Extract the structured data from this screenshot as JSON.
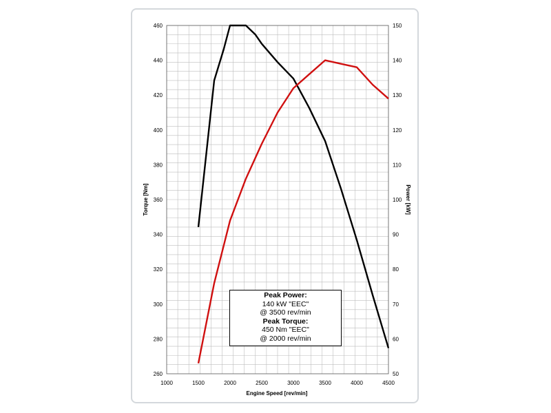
{
  "chart_data": {
    "type": "line",
    "xlabel": "Engine Speed [rev/min]",
    "ylabel_left": "Torque [Nm]",
    "ylabel_right": "Power [kW]",
    "xlim": [
      1000,
      4500
    ],
    "ylim_left": [
      260,
      450
    ],
    "ylim_right": [
      50,
      150
    ],
    "x_ticks": [
      1000,
      1500,
      2000,
      2500,
      3000,
      3500,
      4000,
      4500
    ],
    "y_left_ticks": [
      260,
      280,
      300,
      320,
      340,
      360,
      380,
      400,
      420,
      440,
      460
    ],
    "y_right_ticks": [
      50,
      60,
      70,
      80,
      90,
      100,
      110,
      120,
      130,
      140,
      150
    ],
    "grid": true,
    "series": [
      {
        "axis": "left",
        "color": "#000000",
        "x": [
          1500,
          1600,
          1750,
          1900,
          2000,
          2100,
          2250,
          2400,
          2500,
          2750,
          3000,
          3250,
          3500,
          3750,
          4000,
          4250,
          4500
        ],
        "y": [
          340,
          372,
          420,
          437,
          450,
          450,
          450,
          445,
          440,
          430,
          421,
          405,
          387,
          361,
          333,
          303,
          274
        ]
      },
      {
        "axis": "right",
        "color": "#d01010",
        "x": [
          1500,
          1750,
          2000,
          2250,
          2500,
          2750,
          3000,
          3250,
          3500,
          3750,
          4000,
          4250,
          4500
        ],
        "y": [
          53,
          76,
          94,
          106,
          116,
          125,
          132,
          136,
          140,
          139,
          138,
          133,
          129
        ]
      }
    ],
    "annotation": {
      "lines": [
        "Peak Power:",
        "140 kW \"EEC\"",
        "@  3500 rev/min",
        "Peak Torque:",
        "450 Nm \"EEC\"",
        "@  2000  rev/min"
      ]
    }
  }
}
